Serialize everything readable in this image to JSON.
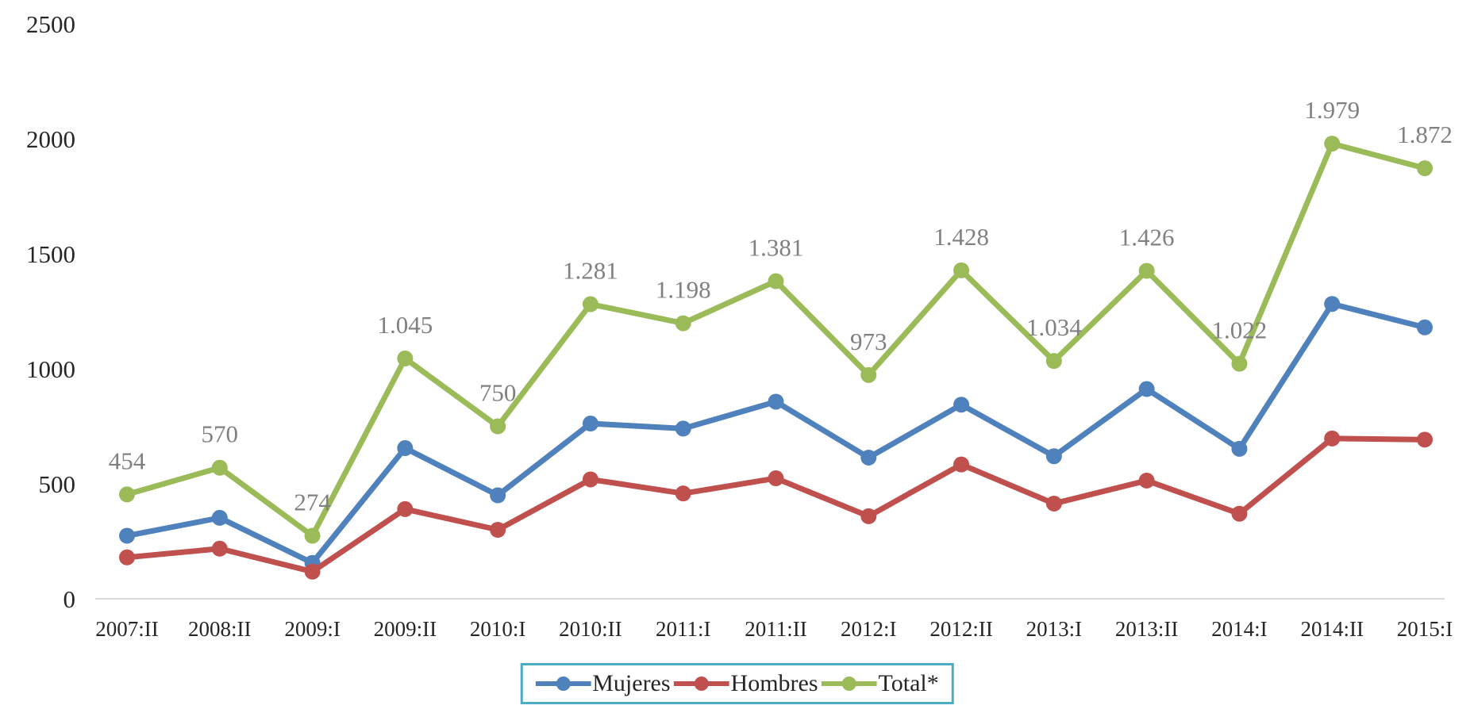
{
  "chart_data": {
    "type": "line",
    "title": "",
    "xlabel": "",
    "ylabel": "",
    "categories": [
      "2007:II",
      "2008:II",
      "2009:I",
      "2009:II",
      "2010:I",
      "2010:II",
      "2011:I",
      "2011:II",
      "2012:I",
      "2012:II",
      "2013:I",
      "2013:II",
      "2014:I",
      "2014:II",
      "2015:I"
    ],
    "series": [
      {
        "name": "Mujeres",
        "color": "#4F81BD",
        "show_labels": false,
        "values": [
          274,
          352,
          156,
          655,
          450,
          762,
          740,
          857,
          614,
          844,
          620,
          912,
          652,
          1282,
          1180
        ]
      },
      {
        "name": "Hombres",
        "color": "#C0504D",
        "show_labels": false,
        "values": [
          180,
          218,
          118,
          390,
          300,
          519,
          458,
          524,
          359,
          584,
          414,
          514,
          370,
          697,
          692
        ]
      },
      {
        "name": "Total*",
        "color": "#9BBB59",
        "show_labels": true,
        "values": [
          454,
          570,
          274,
          1045,
          750,
          1281,
          1198,
          1381,
          973,
          1428,
          1034,
          1426,
          1022,
          1979,
          1872
        ],
        "labels": [
          "454",
          "570",
          "274",
          "1.045",
          "750",
          "1.281",
          "1.198",
          "1.381",
          "973",
          "1.428",
          "1.034",
          "1.426",
          "1.022",
          "1.979",
          "1.872"
        ]
      }
    ],
    "ylim": [
      0,
      2500
    ],
    "yticks": [
      0,
      500,
      1000,
      1500,
      2000,
      2500
    ],
    "grid": false,
    "legend_position": "bottom",
    "axis_text_color": "#262626",
    "data_label_color": "#808080",
    "axis_line_color": "#d9d9d9",
    "legend_border_color": "#4BACC6",
    "background_color": "#ffffff"
  }
}
